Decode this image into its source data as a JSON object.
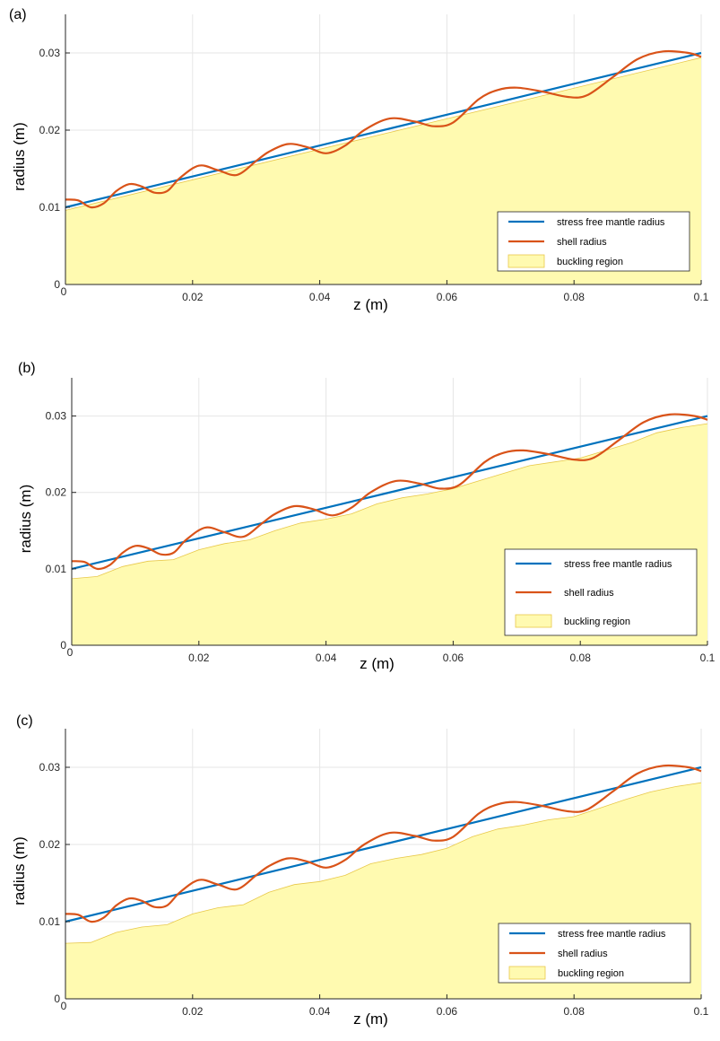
{
  "colors": {
    "mantle": "#0072BD",
    "shell": "#D95319",
    "fill": "#FFFAB0",
    "fill_edge": "#E8C84A",
    "grid": "#E6E6E6",
    "axis": "#262626"
  },
  "chart_data": [
    {
      "type": "line",
      "panel_label": "(a)",
      "xlabel": "z (m)",
      "ylabel": "radius (m)",
      "xlim": [
        0,
        0.1
      ],
      "ylim": [
        0,
        0.035
      ],
      "xticks": [
        0,
        0.02,
        0.04,
        0.06,
        0.08,
        0.1
      ],
      "xtick_labels": [
        "0",
        "0.02",
        "0.04",
        "0.06",
        "0.08",
        "0.1"
      ],
      "yticks": [
        0,
        0.01,
        0.02,
        0.03
      ],
      "ytick_labels": [
        "0",
        "0.01",
        "0.02",
        "0.03"
      ],
      "grid": true,
      "legend_position": "bottom-right",
      "series": [
        {
          "name": "stress free mantle radius",
          "kind": "line",
          "x": [
            0,
            0.1
          ],
          "y": [
            0.01,
            0.03
          ]
        },
        {
          "name": "shell radius",
          "kind": "line",
          "x": [
            0,
            0.002,
            0.004,
            0.006,
            0.008,
            0.01,
            0.012,
            0.014,
            0.016,
            0.018,
            0.021,
            0.024,
            0.027,
            0.03,
            0.032,
            0.035,
            0.038,
            0.041,
            0.044,
            0.047,
            0.051,
            0.055,
            0.058,
            0.061,
            0.065,
            0.068,
            0.071,
            0.075,
            0.079,
            0.082,
            0.086,
            0.09,
            0.094,
            0.098,
            0.1
          ],
          "y": [
            0.011,
            0.0109,
            0.01,
            0.0105,
            0.0121,
            0.013,
            0.0127,
            0.0119,
            0.0121,
            0.0138,
            0.0154,
            0.0148,
            0.0142,
            0.016,
            0.0172,
            0.0182,
            0.0178,
            0.017,
            0.018,
            0.02,
            0.0215,
            0.0211,
            0.0205,
            0.021,
            0.024,
            0.0252,
            0.0255,
            0.025,
            0.0243,
            0.0245,
            0.0268,
            0.0292,
            0.0302,
            0.03,
            0.0295
          ]
        },
        {
          "name": "buckling region",
          "kind": "area",
          "x": [
            0,
            0.1
          ],
          "y": [
            0.0096,
            0.0294
          ]
        }
      ]
    },
    {
      "type": "line",
      "panel_label": "(b)",
      "xlabel": "z (m)",
      "ylabel": "radius (m)",
      "xlim": [
        0,
        0.1
      ],
      "ylim": [
        0,
        0.035
      ],
      "xticks": [
        0,
        0.02,
        0.04,
        0.06,
        0.08,
        0.1
      ],
      "xtick_labels": [
        "0",
        "0.02",
        "0.04",
        "0.06",
        "0.08",
        "0.1"
      ],
      "yticks": [
        0,
        0.01,
        0.02,
        0.03
      ],
      "ytick_labels": [
        "0",
        "0.01",
        "0.02",
        "0.03"
      ],
      "grid": true,
      "legend_position": "bottom-right",
      "series": [
        {
          "name": "stress free mantle radius",
          "kind": "line",
          "x": [
            0,
            0.1
          ],
          "y": [
            0.01,
            0.03
          ]
        },
        {
          "name": "shell radius",
          "kind": "line",
          "x": [
            0,
            0.002,
            0.004,
            0.006,
            0.008,
            0.01,
            0.012,
            0.014,
            0.016,
            0.018,
            0.021,
            0.024,
            0.027,
            0.03,
            0.032,
            0.035,
            0.038,
            0.041,
            0.044,
            0.047,
            0.051,
            0.055,
            0.058,
            0.061,
            0.065,
            0.068,
            0.071,
            0.075,
            0.079,
            0.082,
            0.086,
            0.09,
            0.094,
            0.098,
            0.1
          ],
          "y": [
            0.011,
            0.0109,
            0.01,
            0.0105,
            0.0121,
            0.013,
            0.0127,
            0.0119,
            0.0121,
            0.0138,
            0.0154,
            0.0148,
            0.0142,
            0.016,
            0.0172,
            0.0182,
            0.0178,
            0.017,
            0.018,
            0.02,
            0.0215,
            0.0211,
            0.0205,
            0.021,
            0.024,
            0.0252,
            0.0255,
            0.025,
            0.0243,
            0.0245,
            0.0268,
            0.0292,
            0.0302,
            0.03,
            0.0295
          ]
        },
        {
          "name": "buckling region",
          "kind": "area",
          "x": [
            0,
            0.004,
            0.008,
            0.012,
            0.016,
            0.02,
            0.024,
            0.028,
            0.032,
            0.036,
            0.04,
            0.044,
            0.048,
            0.052,
            0.056,
            0.06,
            0.064,
            0.068,
            0.072,
            0.076,
            0.08,
            0.084,
            0.088,
            0.092,
            0.096,
            0.1
          ],
          "y": [
            0.0087,
            0.009,
            0.0103,
            0.011,
            0.0112,
            0.0125,
            0.0133,
            0.0138,
            0.015,
            0.016,
            0.0165,
            0.0172,
            0.0185,
            0.0193,
            0.0198,
            0.0205,
            0.0215,
            0.0225,
            0.0235,
            0.024,
            0.0245,
            0.0255,
            0.0265,
            0.0278,
            0.0285,
            0.029
          ]
        }
      ]
    },
    {
      "type": "line",
      "panel_label": "(c)",
      "xlabel": "z (m)",
      "ylabel": "radius (m)",
      "xlim": [
        0,
        0.1
      ],
      "ylim": [
        0,
        0.035
      ],
      "xticks": [
        0,
        0.02,
        0.04,
        0.06,
        0.08,
        0.1
      ],
      "xtick_labels": [
        "0",
        "0.02",
        "0.04",
        "0.06",
        "0.08",
        "0.1"
      ],
      "yticks": [
        0,
        0.01,
        0.02,
        0.03
      ],
      "ytick_labels": [
        "0",
        "0.01",
        "0.02",
        "0.03"
      ],
      "grid": true,
      "legend_position": "bottom-right",
      "series": [
        {
          "name": "stress free mantle radius",
          "kind": "line",
          "x": [
            0,
            0.1
          ],
          "y": [
            0.01,
            0.03
          ]
        },
        {
          "name": "shell radius",
          "kind": "line",
          "x": [
            0,
            0.002,
            0.004,
            0.006,
            0.008,
            0.01,
            0.012,
            0.014,
            0.016,
            0.018,
            0.021,
            0.024,
            0.027,
            0.03,
            0.032,
            0.035,
            0.038,
            0.041,
            0.044,
            0.047,
            0.051,
            0.055,
            0.058,
            0.061,
            0.065,
            0.068,
            0.071,
            0.075,
            0.079,
            0.082,
            0.086,
            0.09,
            0.094,
            0.098,
            0.1
          ],
          "y": [
            0.011,
            0.0109,
            0.01,
            0.0105,
            0.0121,
            0.013,
            0.0127,
            0.0119,
            0.0121,
            0.0138,
            0.0154,
            0.0148,
            0.0142,
            0.016,
            0.0172,
            0.0182,
            0.0178,
            0.017,
            0.018,
            0.02,
            0.0215,
            0.0211,
            0.0205,
            0.021,
            0.024,
            0.0252,
            0.0255,
            0.025,
            0.0243,
            0.0245,
            0.0268,
            0.0292,
            0.0302,
            0.03,
            0.0295
          ]
        },
        {
          "name": "buckling region",
          "kind": "area",
          "x": [
            0,
            0.004,
            0.008,
            0.012,
            0.016,
            0.02,
            0.024,
            0.028,
            0.032,
            0.036,
            0.04,
            0.044,
            0.048,
            0.052,
            0.056,
            0.06,
            0.064,
            0.068,
            0.072,
            0.076,
            0.08,
            0.084,
            0.088,
            0.092,
            0.096,
            0.1
          ],
          "y": [
            0.0072,
            0.0073,
            0.0086,
            0.0093,
            0.0096,
            0.011,
            0.0118,
            0.0122,
            0.0138,
            0.0148,
            0.0152,
            0.016,
            0.0175,
            0.0182,
            0.0187,
            0.0195,
            0.021,
            0.022,
            0.0225,
            0.0232,
            0.0236,
            0.0247,
            0.0258,
            0.0268,
            0.0275,
            0.028
          ]
        }
      ]
    }
  ]
}
